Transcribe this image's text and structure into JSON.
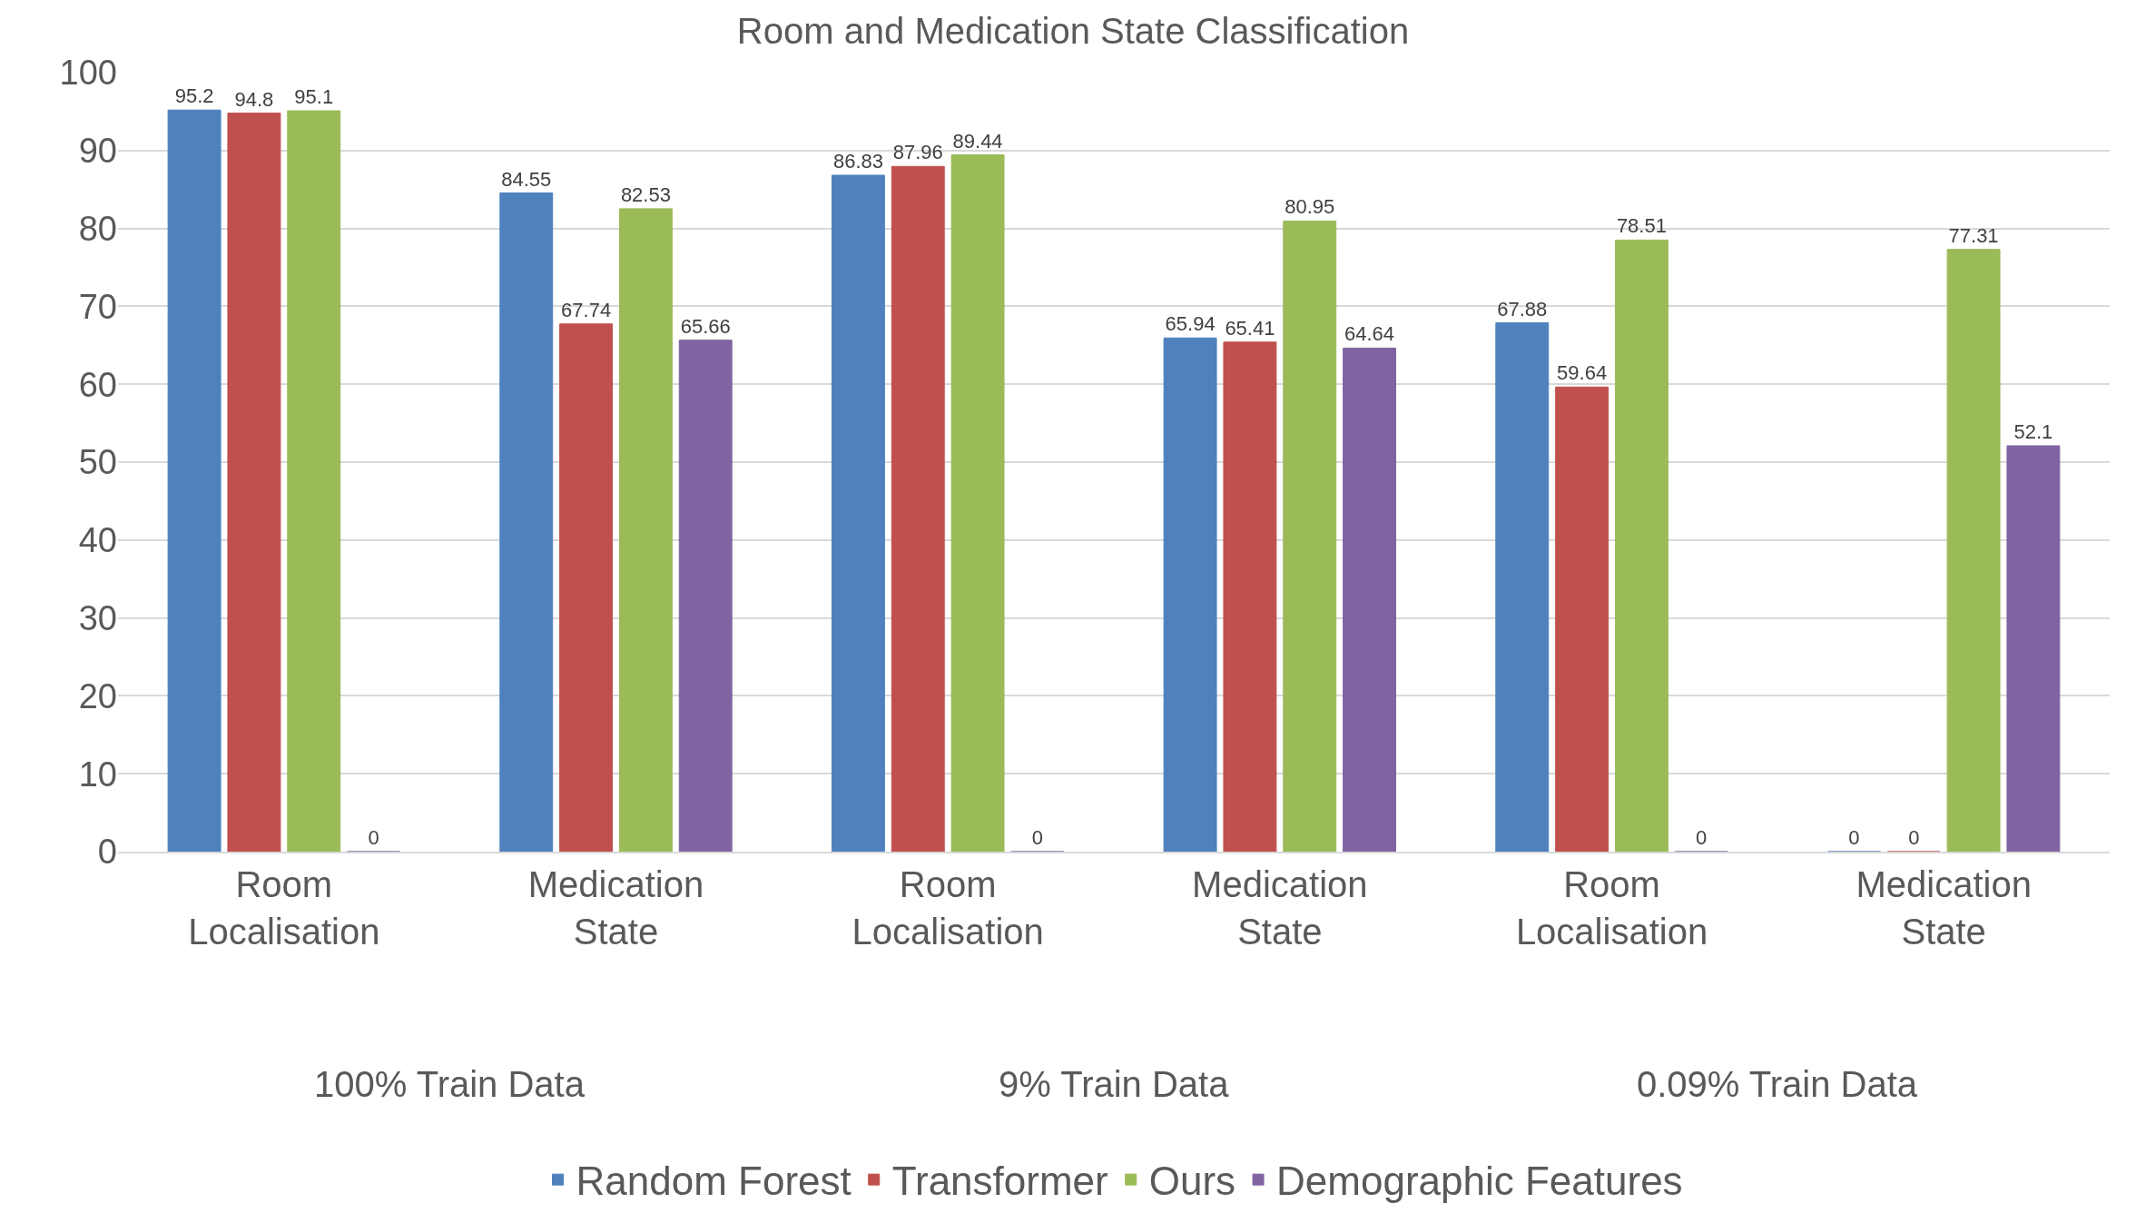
{
  "chart_data": {
    "type": "bar",
    "title": "Room and Medication State Classification",
    "categories": [
      "Room Localisation",
      "Medication State",
      "Room Localisation",
      "Medication State",
      "Room Localisation",
      "Medication State"
    ],
    "series": [
      {
        "name": "Random Forest",
        "color": "#4f81bd",
        "values": [
          95.2,
          84.55,
          86.83,
          65.94,
          67.88,
          0
        ]
      },
      {
        "name": "Transformer",
        "color": "#c0504d",
        "values": [
          94.8,
          67.74,
          87.96,
          65.41,
          59.64,
          0
        ]
      },
      {
        "name": "Ours",
        "color": "#9bbb59",
        "values": [
          95.1,
          82.53,
          89.44,
          80.95,
          78.51,
          77.31
        ]
      },
      {
        "name": "Demographic Features",
        "color": "#8064a2",
        "values": [
          0,
          65.66,
          0,
          64.64,
          0,
          52.1
        ]
      }
    ],
    "annotations": [
      "100% Train Data",
      "9% Train Data",
      "0.09% Train Data"
    ],
    "ylim": [
      0,
      100
    ],
    "yticks": [
      0,
      10,
      20,
      30,
      40,
      50,
      60,
      70,
      80,
      90,
      100
    ],
    "grid": "y",
    "legend": "bottom",
    "data_labels": true
  }
}
